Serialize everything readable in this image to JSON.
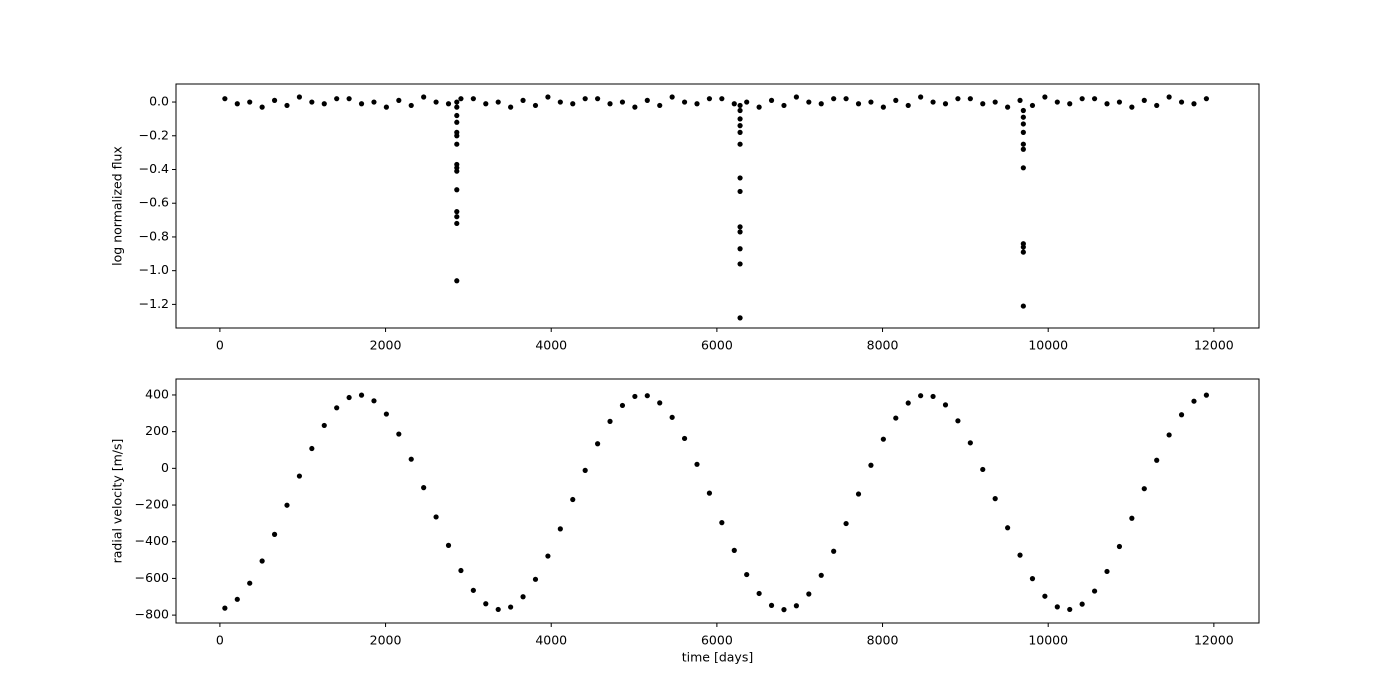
{
  "chart_data": [
    {
      "type": "scatter",
      "ylabel": "log normalized flux",
      "color": "#000000",
      "x": [
        60,
        210,
        360,
        510,
        660,
        810,
        960,
        1110,
        1260,
        1410,
        1560,
        1710,
        1860,
        2010,
        2160,
        2310,
        2460,
        2610,
        2760,
        2910,
        3060,
        3210,
        3360,
        3510,
        3660,
        3810,
        3960,
        4110,
        4260,
        4410,
        4560,
        4710,
        4860,
        5010,
        5160,
        5310,
        5460,
        5610,
        5760,
        5910,
        6060,
        6210,
        6360,
        6510,
        6660,
        6810,
        6960,
        7110,
        7260,
        7410,
        7560,
        7710,
        7860,
        8010,
        8160,
        8310,
        8460,
        8610,
        8760,
        8910,
        9060,
        9210,
        9360,
        9510,
        9660,
        9810,
        9960,
        10110,
        10260,
        10410,
        10560,
        10710,
        10860,
        11010,
        11160,
        11310,
        11460,
        11610,
        11760,
        11910,
        2860,
        2860,
        2860,
        2860,
        2860,
        2860,
        2860,
        2860,
        2860,
        2860,
        2860,
        2860,
        2860,
        2860,
        2860,
        6280,
        6280,
        6280,
        6280,
        6280,
        6280,
        6280,
        6280,
        6280,
        6280,
        6280,
        6280,
        6280,
        9700,
        9700,
        9700,
        9700,
        9700,
        9700,
        9700,
        9700,
        9700,
        9700,
        9700
      ],
      "values": [
        0.02,
        -0.01,
        0.0,
        -0.03,
        0.01,
        -0.02,
        0.03,
        0.0,
        -0.01,
        0.02,
        0.02,
        -0.01,
        0.0,
        -0.03,
        0.01,
        -0.02,
        0.03,
        0.0,
        -0.01,
        0.02,
        0.02,
        -0.01,
        0.0,
        -0.03,
        0.01,
        -0.02,
        0.03,
        0.0,
        -0.01,
        0.02,
        0.02,
        -0.01,
        0.0,
        -0.03,
        0.01,
        -0.02,
        0.03,
        0.0,
        -0.01,
        0.02,
        0.02,
        -0.01,
        0.0,
        -0.03,
        0.01,
        -0.02,
        0.03,
        0.0,
        -0.01,
        0.02,
        0.02,
        -0.01,
        0.0,
        -0.03,
        0.01,
        -0.02,
        0.03,
        0.0,
        -0.01,
        0.02,
        0.02,
        -0.01,
        0.0,
        -0.03,
        0.01,
        -0.02,
        0.03,
        0.0,
        -0.01,
        0.02,
        0.02,
        -0.01,
        0.0,
        -0.03,
        0.01,
        -0.02,
        0.03,
        0.0,
        -0.01,
        0.02,
        0.0,
        -0.03,
        -0.08,
        -0.12,
        -0.18,
        -0.2,
        -0.25,
        -0.37,
        -0.39,
        -0.41,
        -0.52,
        -0.65,
        -0.68,
        -0.72,
        -1.06,
        -0.02,
        -0.05,
        -0.1,
        -0.14,
        -0.18,
        -0.25,
        -0.45,
        -0.53,
        -0.74,
        -0.77,
        -0.87,
        -0.96,
        -1.28,
        -0.05,
        -0.09,
        -0.13,
        -0.18,
        -0.25,
        -0.28,
        -0.39,
        -0.84,
        -0.86,
        -0.89,
        -1.21
      ],
      "xlim": [
        -530,
        12545
      ],
      "xticks": [
        0,
        2000,
        4000,
        6000,
        8000,
        10000,
        12000
      ],
      "ylim": [
        -1.34,
        0.107
      ],
      "yticks": [
        {
          "value": 0,
          "label": "0.0"
        },
        {
          "value": -0.2,
          "label": "−0.2"
        },
        {
          "value": -0.4,
          "label": "−0.4"
        },
        {
          "value": -0.6,
          "label": "−0.6"
        },
        {
          "value": -0.8,
          "label": "−0.8"
        },
        {
          "value": -1.0,
          "label": "−1.0"
        },
        {
          "value": -1.2,
          "label": "−1.2"
        }
      ]
    },
    {
      "type": "scatter",
      "xlabel": "time [days]",
      "ylabel": "radial velocity [m/s]",
      "color": "#000000",
      "x": [
        60,
        210,
        360,
        510,
        660,
        810,
        960,
        1110,
        1260,
        1410,
        1560,
        1710,
        1860,
        2010,
        2160,
        2310,
        2460,
        2610,
        2760,
        2910,
        3060,
        3210,
        3360,
        3510,
        3660,
        3810,
        3960,
        4110,
        4260,
        4410,
        4560,
        4710,
        4860,
        5010,
        5160,
        5310,
        5460,
        5610,
        5760,
        5910,
        6060,
        6210,
        6360,
        6510,
        6660,
        6810,
        6960,
        7110,
        7260,
        7410,
        7560,
        7710,
        7860,
        8010,
        8160,
        8310,
        8460,
        8610,
        8760,
        8910,
        9060,
        9210,
        9360,
        9510,
        9660,
        9810,
        9960,
        10110,
        10260,
        10410,
        10560,
        10710,
        10860,
        11010,
        11160,
        11310,
        11460,
        11610,
        11760,
        11910
      ],
      "values": [
        -762,
        -714,
        -626,
        -505,
        -360,
        -201,
        -42,
        108,
        234,
        330,
        386,
        399,
        368,
        296,
        187,
        50,
        -105,
        -265,
        -420,
        -557,
        -665,
        -738,
        -769,
        -756,
        -700,
        -605,
        -478,
        -330,
        -170,
        -11,
        134,
        256,
        343,
        392,
        396,
        357,
        278,
        163,
        22,
        -135,
        -296,
        -447,
        -579,
        -682,
        -747,
        -770,
        -749,
        -685,
        -583,
        -452,
        -301,
        -140,
        17,
        159,
        274,
        356,
        396,
        392,
        346,
        259,
        139,
        -6,
        -165,
        -324,
        -473,
        -601,
        -697,
        -755,
        -769,
        -740,
        -669,
        -562,
        -426,
        -272,
        -111,
        44,
        182,
        292,
        366,
        399
      ],
      "xlim": [
        -530,
        12545
      ],
      "xticks": [
        0,
        2000,
        4000,
        6000,
        8000,
        10000,
        12000
      ],
      "ylim": [
        -843,
        487
      ],
      "yticks": [
        {
          "value": 400,
          "label": "400"
        },
        {
          "value": 200,
          "label": "200"
        },
        {
          "value": 0,
          "label": "0"
        },
        {
          "value": -200,
          "label": "−200"
        },
        {
          "value": -400,
          "label": "−400"
        },
        {
          "value": -600,
          "label": "−600"
        },
        {
          "value": -800,
          "label": "−800"
        }
      ]
    }
  ]
}
